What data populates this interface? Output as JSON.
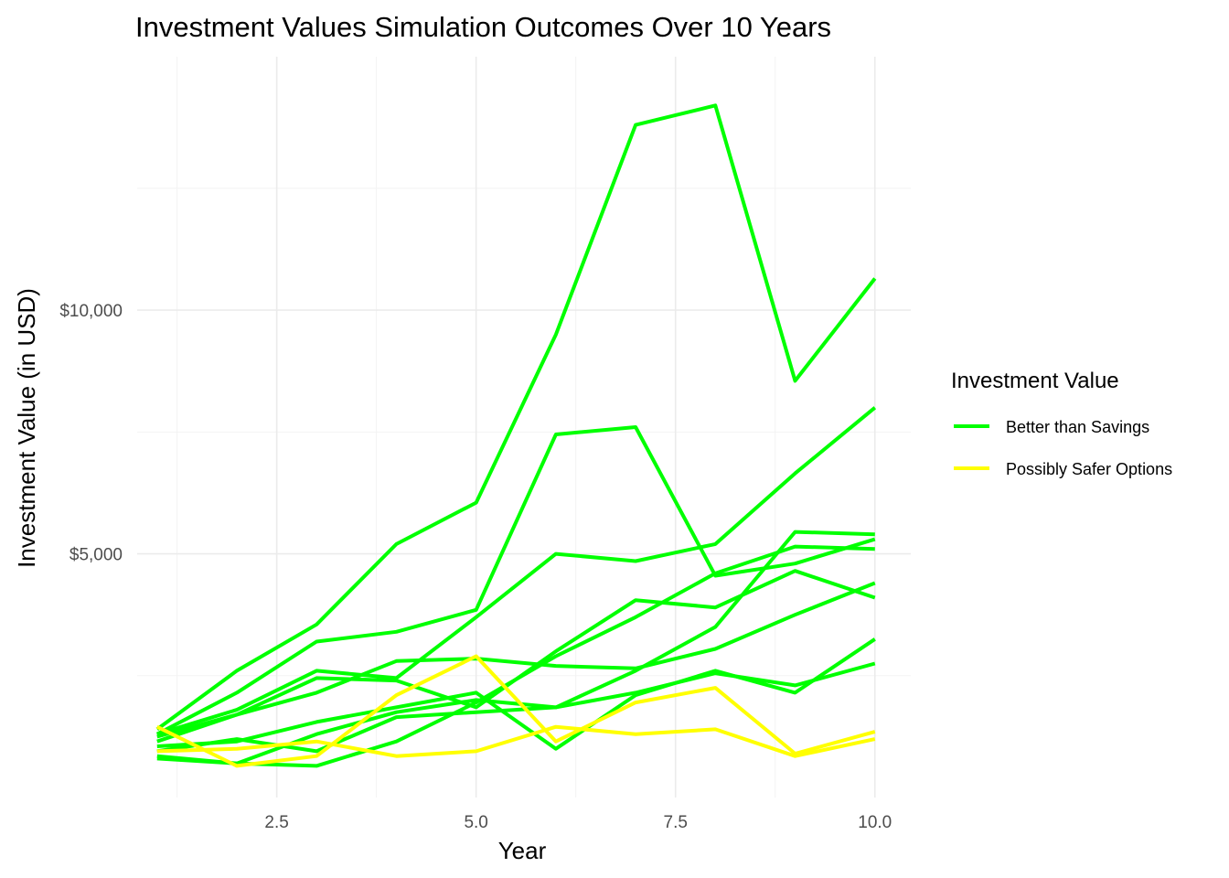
{
  "chart_data": {
    "type": "line",
    "title": "Investment Values Simulation Outcomes Over 10 Years",
    "xlabel": "Year",
    "ylabel": "Investment Value (in USD)",
    "xlim": [
      0.75,
      10.45
    ],
    "ylim": [
      0,
      15200
    ],
    "x_ticks": [
      2.5,
      5.0,
      7.5,
      10.0
    ],
    "x_tick_labels": [
      "2.5",
      "5.0",
      "7.5",
      "10.0"
    ],
    "y_ticks": [
      5000,
      10000
    ],
    "y_tick_labels": [
      "$5,000",
      "$10,000"
    ],
    "grid": true,
    "legend": {
      "title": "Investment Value",
      "position": "right",
      "entries": [
        {
          "label": "Better than Savings",
          "color": "#00ff00"
        },
        {
          "label": "Possibly Safer Options",
          "color": "#ffff00"
        }
      ]
    },
    "x": [
      1,
      2,
      3,
      4,
      5,
      6,
      7,
      8,
      9,
      10
    ],
    "series": [
      {
        "group": "Better than Savings",
        "color": "#00ff00",
        "values": [
          1400,
          2600,
          3550,
          5200,
          6050,
          9500,
          13800,
          14200,
          8550,
          10650
        ]
      },
      {
        "group": "Better than Savings",
        "color": "#00ff00",
        "values": [
          1300,
          2150,
          3200,
          3400,
          3850,
          7450,
          7600,
          4550,
          4800,
          5300
        ]
      },
      {
        "group": "Better than Savings",
        "color": "#00ff00",
        "values": [
          1150,
          1700,
          2450,
          2400,
          1850,
          3000,
          4050,
          3900,
          4650,
          4100
        ]
      },
      {
        "group": "Better than Savings",
        "color": "#00ff00",
        "values": [
          1250,
          1700,
          2150,
          2800,
          2850,
          2700,
          2650,
          3050,
          3750,
          4400
        ]
      },
      {
        "group": "Better than Savings",
        "color": "#00ff00",
        "values": [
          1300,
          1800,
          2600,
          2450,
          3700,
          5000,
          4850,
          5200,
          6650,
          8000
        ]
      },
      {
        "group": "Better than Savings",
        "color": "#00ff00",
        "values": [
          850,
          700,
          1300,
          1750,
          2000,
          1850,
          2600,
          3500,
          5450,
          5400
        ]
      },
      {
        "group": "Better than Savings",
        "color": "#00ff00",
        "values": [
          800,
          700,
          650,
          1150,
          1950,
          2900,
          3700,
          4600,
          5150,
          5100
        ]
      },
      {
        "group": "Better than Savings",
        "color": "#00ff00",
        "values": [
          1050,
          1150,
          1550,
          1850,
          2150,
          1000,
          2100,
          2600,
          2150,
          3250
        ]
      },
      {
        "group": "Better than Savings",
        "color": "#00ff00",
        "values": [
          950,
          1200,
          950,
          1650,
          1750,
          1850,
          2150,
          2550,
          2300,
          2750
        ]
      },
      {
        "group": "Possibly Safer Options",
        "color": "#ffff00",
        "values": [
          1450,
          650,
          850,
          2100,
          2900,
          1150,
          1950,
          2250,
          900,
          1350
        ]
      },
      {
        "group": "Possibly Safer Options",
        "color": "#ffff00",
        "values": [
          950,
          1000,
          1150,
          850,
          950,
          1450,
          1300,
          1400,
          850,
          1200
        ]
      }
    ]
  }
}
